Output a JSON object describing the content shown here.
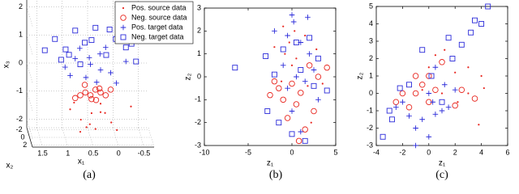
{
  "chart_data": [
    {
      "type": "scatter3d",
      "caption": "(a)",
      "xlabel": "x₁",
      "ylabel": "x₂",
      "zlabel": "x₃",
      "xlim": [
        -0.7,
        1.7
      ],
      "x_inverted": true,
      "xticks": [
        1.5,
        1,
        0.5,
        0,
        -0.5
      ],
      "ylim": [
        -2.5,
        2.5
      ],
      "yticks": [
        -2,
        0,
        2
      ],
      "zlim": [
        -2.3,
        2.3
      ],
      "zticks": [
        2,
        1,
        0,
        -1,
        -2
      ],
      "grid": true,
      "legend": "upper right",
      "series": [
        {
          "name": "Pos. source data",
          "color": "#e8261f",
          "marker": "dot",
          "x": [
            0.9,
            0.7,
            0.5,
            0.3,
            0.1,
            0.8,
            0.6,
            0.4,
            0.2,
            0.5,
            0.3,
            0.7,
            -0.3,
            0.0
          ],
          "y": [
            0,
            0.5,
            -0.5,
            0,
            0.5,
            -1,
            1,
            0,
            -0.5,
            1,
            0,
            0,
            0,
            1
          ],
          "z": [
            -1.3,
            -1.6,
            -1.9,
            -1.4,
            -1.7,
            -1.2,
            -1.8,
            -2.0,
            -1.5,
            -1.3,
            -1.1,
            -2.1,
            -1.2,
            -1.9
          ]
        },
        {
          "name": "Neg. source data",
          "color": "#e8261f",
          "marker": "circle",
          "x": [
            0.8,
            0.7,
            0.6,
            0.5,
            0.4,
            0.3,
            0.2,
            0.6,
            0.4,
            0.1,
            0.5,
            0.3
          ],
          "y": [
            0,
            0,
            0,
            0,
            0,
            0,
            0,
            -0.5,
            0.5,
            0,
            1,
            -1
          ],
          "z": [
            -0.9,
            -0.8,
            -0.7,
            -0.8,
            -0.6,
            -0.7,
            -0.8,
            -0.5,
            -0.9,
            -0.6,
            -0.8,
            -0.7
          ]
        },
        {
          "name": "Pos. target data",
          "color": "#2b2bd9",
          "marker": "plus",
          "x": [
            1.0,
            0.8,
            0.6,
            0.5,
            0.3,
            0.1,
            0.0,
            -0.2,
            0.7,
            0.4,
            0.2,
            0.9,
            0.5,
            0.3
          ],
          "y": [
            0,
            0,
            0.5,
            0,
            -0.5,
            0,
            0.5,
            0,
            -0.5,
            1,
            0,
            0,
            -1,
            0
          ],
          "z": [
            0.2,
            0.5,
            -0.1,
            0.3,
            0.6,
            0.0,
            -0.3,
            0.4,
            0.8,
            -0.2,
            0.9,
            -0.1,
            0.4,
            0.1
          ]
        },
        {
          "name": "Neg. target data",
          "color": "#2b2bd9",
          "marker": "square",
          "x": [
            1.4,
            1.2,
            1.0,
            0.8,
            0.6,
            0.4,
            0.2,
            0.0,
            -0.2,
            -0.4,
            0.9,
            0.5,
            0.1,
            1.1,
            0.7,
            -0.3
          ],
          "y": [
            0,
            0,
            0.5,
            0,
            -0.5,
            0,
            0.5,
            0,
            0,
            0,
            -1,
            1,
            -1,
            1,
            0,
            0.5
          ],
          "z": [
            0.8,
            1.2,
            0.9,
            1.5,
            1.0,
            1.6,
            0.7,
            1.2,
            0.9,
            0.4,
            0.5,
            1.3,
            1.4,
            0.6,
            0.3,
            1.1
          ]
        }
      ]
    },
    {
      "type": "scatter",
      "caption": "(b)",
      "xlabel": "z₁",
      "ylabel": "z₂",
      "xlim": [
        -10,
        5
      ],
      "xticks": [
        -10,
        -5,
        0,
        5
      ],
      "ylim": [
        -3,
        3
      ],
      "yticks": [
        -3,
        -2,
        -1,
        0,
        1,
        2,
        3
      ],
      "series": [
        {
          "color": "#e8261f",
          "marker": "dot",
          "x": [
            -1,
            0.3,
            1.5,
            -0.8,
            2.8,
            3.5,
            -2,
            0.5,
            1.8,
            -1.2,
            2.2,
            0,
            -0.3
          ],
          "values": [
            2.2,
            2,
            1.8,
            1,
            1.2,
            -0.3,
            1.3,
            0.8,
            -0.4,
            -0.2,
            -2,
            0.5,
            1.5
          ]
        },
        {
          "color": "#e8261f",
          "marker": "circle",
          "x": [
            -2.5,
            -1.5,
            -1,
            0,
            0.5,
            1,
            2,
            3,
            4,
            -0.5,
            1.5,
            2.5,
            0.8,
            -2
          ],
          "values": [
            -0.8,
            -0.5,
            -1,
            -0.3,
            -1.2,
            -0.7,
            0.5,
            0,
            0.4,
            -1.8,
            -2.3,
            -1.5,
            -2.8,
            -0.2
          ]
        },
        {
          "color": "#2b2bd9",
          "marker": "plus",
          "x": [
            0,
            0.2,
            -0.5,
            1,
            2,
            -1,
            0.5,
            1.5,
            2.5,
            -0.5,
            3,
            0,
            1,
            -2,
            1.8
          ],
          "values": [
            2.7,
            2.4,
            1.8,
            1.5,
            1,
            0.5,
            0,
            -0.2,
            0.3,
            -0.5,
            -1,
            -1.5,
            -2.4,
            2,
            2.6
          ]
        },
        {
          "color": "#2b2bd9",
          "marker": "square",
          "x": [
            -6.5,
            -3,
            -2.8,
            -1,
            0.5,
            1,
            2.5,
            3,
            -1.5,
            0,
            4,
            -2,
            1.5,
            2
          ],
          "values": [
            0.4,
            0.9,
            -1.5,
            1.2,
            1.5,
            0.3,
            -0.4,
            0.8,
            -2,
            -2.5,
            -0.6,
            0.1,
            -2.8,
            1.7
          ]
        }
      ]
    },
    {
      "type": "scatter",
      "caption": "(c)",
      "xlabel": "z₁",
      "ylabel": "z₂",
      "xlim": [
        -4,
        6
      ],
      "xticks": [
        -4,
        -2,
        0,
        2,
        4,
        6
      ],
      "ylim": [
        -3,
        5
      ],
      "yticks": [
        -3,
        -2,
        -1,
        0,
        1,
        2,
        3,
        4,
        5
      ],
      "series": [
        {
          "color": "#e8261f",
          "marker": "dot",
          "x": [
            0,
            0.5,
            1.2,
            2,
            3,
            4,
            4.2,
            3,
            2.2,
            -0.5,
            1,
            3.8
          ],
          "values": [
            1.5,
            2.2,
            2.5,
            1.2,
            1.5,
            1,
            0.3,
            0,
            -0.5,
            0.2,
            0,
            -1.8
          ]
        },
        {
          "color": "#e8261f",
          "marker": "circle",
          "x": [
            -2,
            -1.5,
            -1,
            -0.5,
            0,
            0.5,
            1,
            2,
            2.5,
            3.5,
            -2.5,
            -1,
            0
          ],
          "values": [
            0,
            -0.8,
            0,
            0.5,
            1,
            0.2,
            1.8,
            -0.7,
            0.2,
            -0.3,
            -0.5,
            1,
            -0.5
          ]
        },
        {
          "color": "#2b2bd9",
          "marker": "plus",
          "x": [
            -1,
            -0.5,
            0,
            0.5,
            1,
            1.5,
            -1.5,
            -2,
            0,
            0.5,
            2,
            -1,
            -2.5,
            0.3,
            1.2
          ],
          "values": [
            -2,
            -1.5,
            -2.5,
            -1.2,
            -1,
            -0.8,
            -1.3,
            -0.5,
            0,
            1.5,
            0.2,
            -3,
            -0.8,
            -0.5,
            0.5
          ]
        },
        {
          "color": "#2b2bd9",
          "marker": "square",
          "x": [
            4.5,
            4,
            3.5,
            3.2,
            1.5,
            1.8,
            2.5,
            -0.5,
            -3,
            -2.8,
            -1.5,
            -2.2,
            0.2,
            1,
            -3.5
          ],
          "values": [
            5,
            4,
            4.2,
            3.5,
            3.2,
            2,
            2.8,
            2.5,
            -1,
            -1.5,
            0.5,
            0.3,
            1,
            -0.5,
            -2.5
          ]
        }
      ]
    }
  ]
}
